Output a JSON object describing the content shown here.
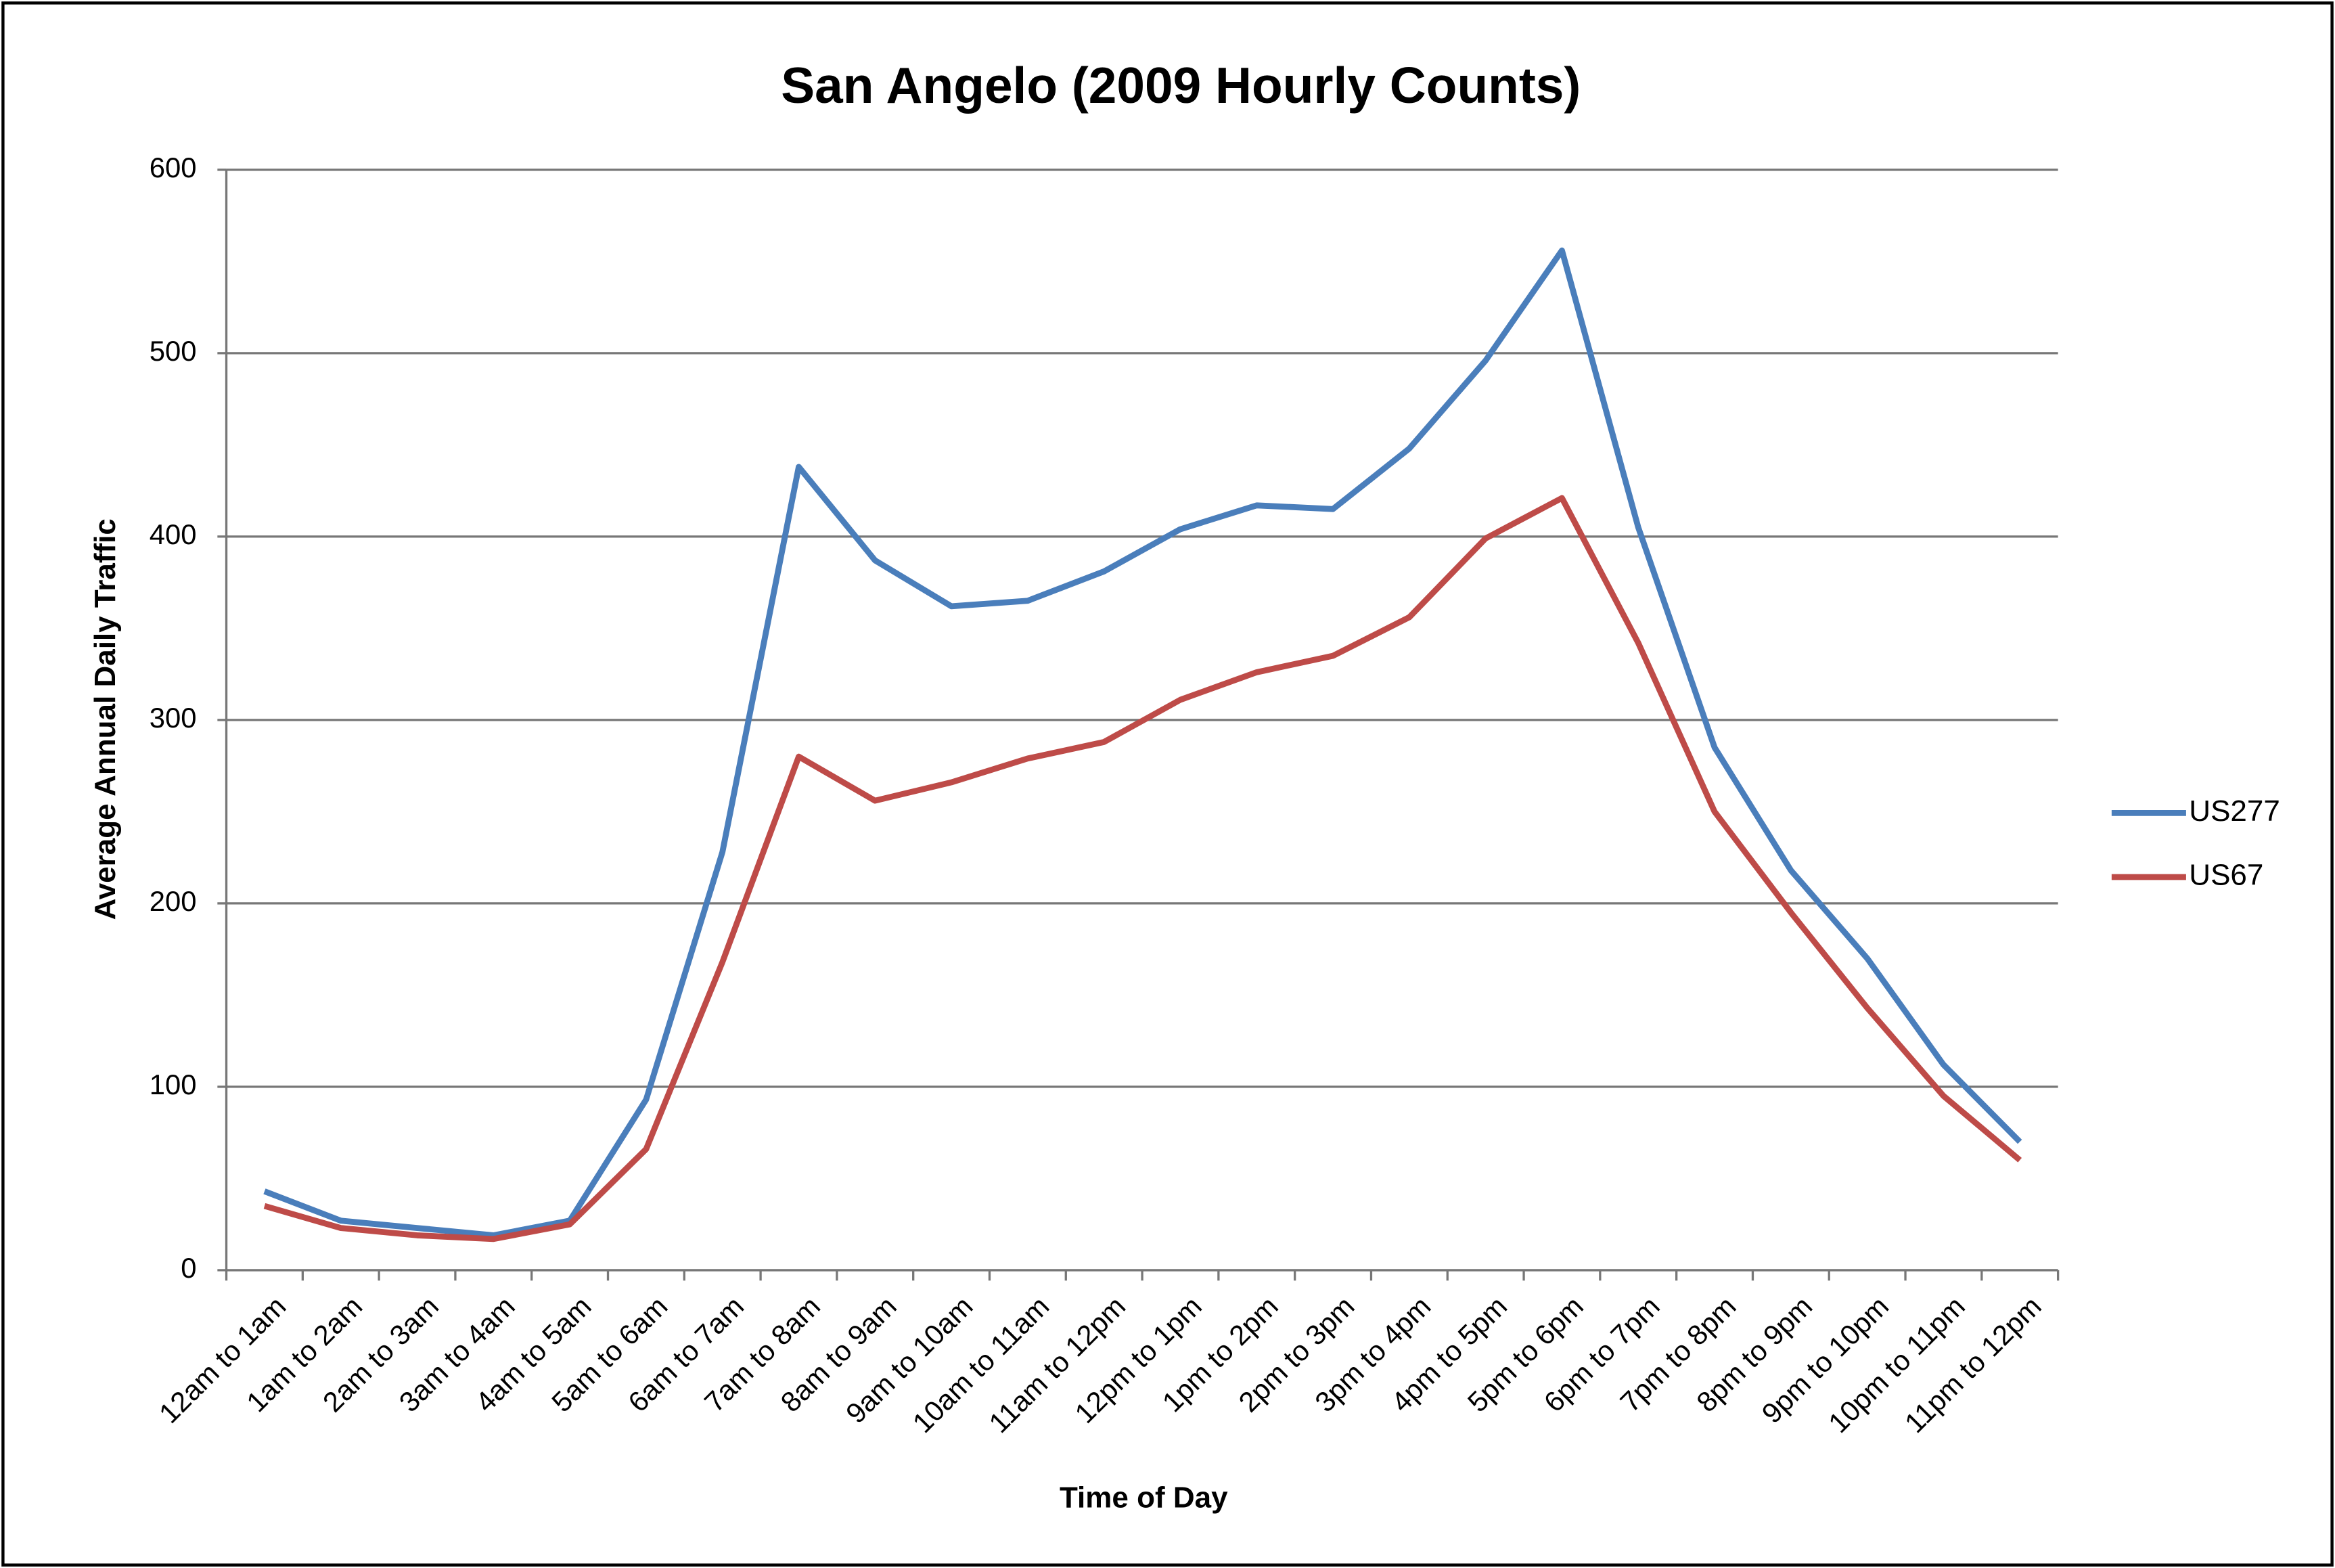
{
  "chart_data": {
    "type": "line",
    "title": "San Angelo (2009 Hourly Counts)",
    "x_label": "Time of Day",
    "y_label": "Average Annual Daily Traffic",
    "categories": [
      "12am to 1am",
      "1am to 2am",
      "2am to 3am",
      "3am to 4am",
      "4am to 5am",
      "5am to 6am",
      "6am to 7am",
      "7am to 8am",
      "8am to 9am",
      "9am to 10am",
      "10am to 11am",
      "11am to 12pm",
      "12pm to 1pm",
      "1pm to 2pm",
      "2pm to 3pm",
      "3pm to 4pm",
      "4pm to 5pm",
      "5pm to 6pm",
      "6pm to 7pm",
      "7pm to 8pm",
      "8pm to 9pm",
      "9pm to 10pm",
      "10pm to 11pm",
      "11pm to 12pm"
    ],
    "series": [
      {
        "name": "US277",
        "color": "#4a7ebb",
        "values": [
          43,
          27,
          23,
          19,
          27,
          93,
          228,
          438,
          387,
          362,
          365,
          381,
          404,
          417,
          415,
          448,
          496,
          556,
          405,
          285,
          218,
          170,
          112,
          70
        ]
      },
      {
        "name": "US67",
        "color": "#be4b48",
        "values": [
          35,
          23,
          19,
          17,
          25,
          66,
          168,
          280,
          256,
          266,
          279,
          288,
          311,
          326,
          335,
          356,
          399,
          421,
          342,
          250,
          195,
          143,
          95,
          60
        ]
      }
    ],
    "ylim": [
      0,
      600
    ],
    "yticks": [
      0,
      100,
      200,
      300,
      400,
      500,
      600
    ],
    "grid": true,
    "legend": "right"
  }
}
